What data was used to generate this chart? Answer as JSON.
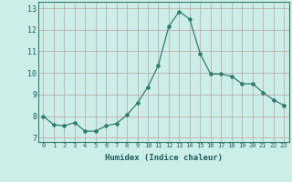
{
  "x": [
    0,
    1,
    2,
    3,
    4,
    5,
    6,
    7,
    8,
    9,
    10,
    11,
    12,
    13,
    14,
    15,
    16,
    17,
    18,
    19,
    20,
    21,
    22,
    23
  ],
  "y": [
    8.0,
    7.6,
    7.55,
    7.7,
    7.3,
    7.3,
    7.55,
    7.65,
    8.05,
    8.6,
    9.35,
    10.35,
    12.15,
    12.85,
    12.5,
    10.9,
    9.95,
    9.95,
    9.85,
    9.5,
    9.5,
    9.1,
    8.75,
    8.5
  ],
  "line_color": "#2e7d6e",
  "marker": "D",
  "marker_size": 2,
  "bg_color": "#cceee8",
  "grid_color": "#c0a0a0",
  "xlabel": "Humidex (Indice chaleur)",
  "ylabel_ticks": [
    7,
    8,
    9,
    10,
    11,
    12,
    13
  ],
  "xtick_labels": [
    "0",
    "1",
    "2",
    "3",
    "4",
    "5",
    "6",
    "7",
    "8",
    "9",
    "10",
    "11",
    "12",
    "13",
    "14",
    "15",
    "16",
    "17",
    "18",
    "19",
    "20",
    "21",
    "22",
    "23"
  ],
  "xlim": [
    -0.5,
    23.5
  ],
  "ylim": [
    6.8,
    13.3
  ]
}
